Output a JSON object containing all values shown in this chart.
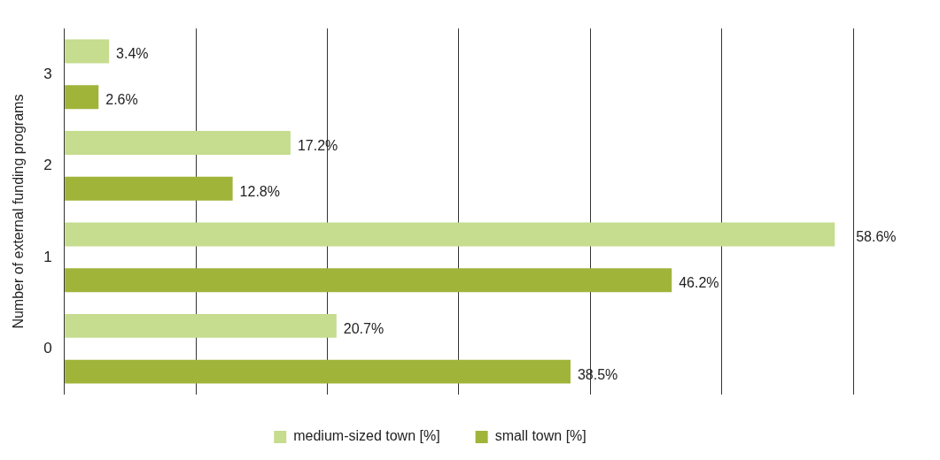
{
  "chart_data": {
    "type": "bar",
    "orientation": "horizontal",
    "ylabel": "Number of external funding programs",
    "categories": [
      "3",
      "2",
      "1",
      "0"
    ],
    "series": [
      {
        "name": "medium-sized town [%]",
        "color": "#c6dc8e",
        "values": [
          3.4,
          17.2,
          58.6,
          20.7
        ],
        "value_labels": [
          "3.4%",
          "17.2%",
          "58.6%",
          "20.7%"
        ]
      },
      {
        "name": "small town [%]",
        "color": "#a0b43a",
        "values": [
          2.6,
          12.8,
          46.2,
          38.5
        ],
        "value_labels": [
          "2.6%",
          "12.8%",
          "46.2%",
          "38.5%"
        ]
      }
    ],
    "xlim": [
      0,
      60
    ],
    "xticks": [
      {
        "value": 0,
        "label": null
      },
      {
        "value": 10,
        "label": null
      },
      {
        "value": 20,
        "label": null
      },
      {
        "value": 30,
        "label": null
      },
      {
        "value": 40,
        "label": null
      },
      {
        "value": 50,
        "label": null
      },
      {
        "value": 60,
        "label": null
      }
    ],
    "tick_labels": "y",
    "grid": "x",
    "legend": "bottom"
  }
}
